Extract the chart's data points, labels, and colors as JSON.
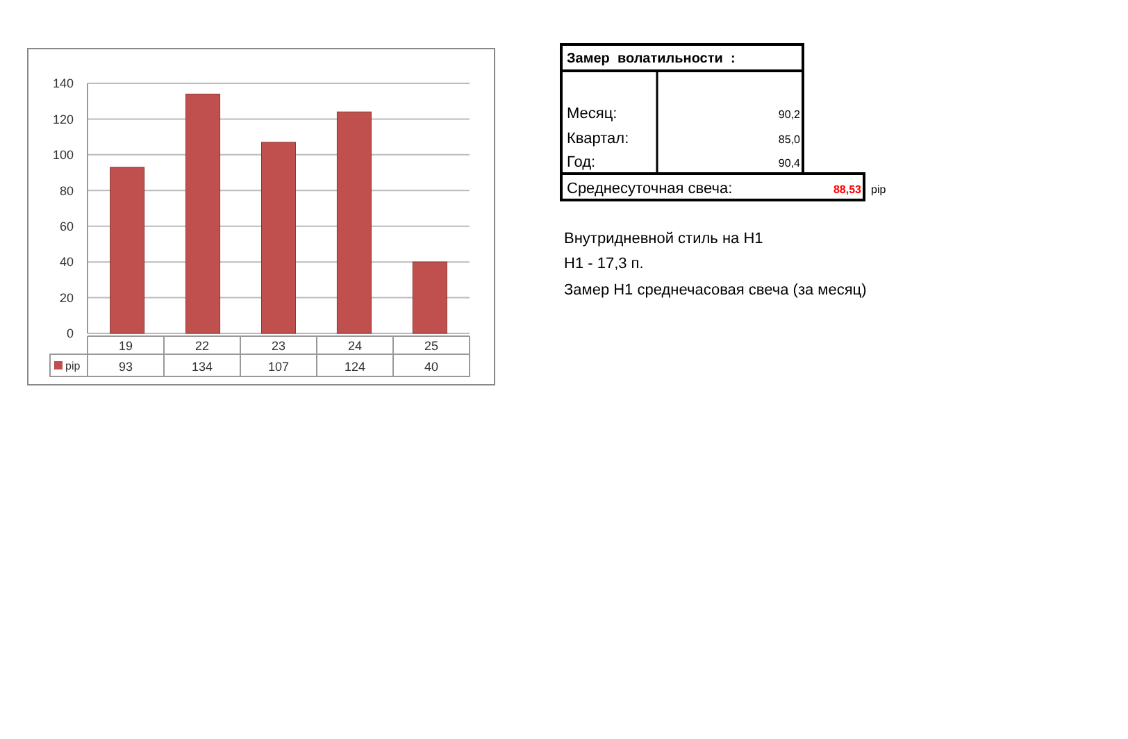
{
  "chart_data": [
    {
      "type": "bar",
      "categories": [
        "19",
        "22",
        "23",
        "24",
        "25"
      ],
      "series": [
        {
          "name": "pip",
          "color": "#c0504d",
          "values": [
            93,
            134,
            107,
            124,
            40
          ]
        }
      ],
      "ylim": [
        0,
        140
      ],
      "yticks": [
        0,
        20,
        40,
        60,
        80,
        100,
        120,
        140
      ],
      "grid": "y",
      "data_labels": true,
      "legend": "bottom left"
    },
    {
      "type": "other",
      "title": "Замер  волатильности  :",
      "annotations": [
        "Месяц:",
        "90,2",
        "Квартал:",
        "85,0",
        "Год:",
        "90,4",
        "Среднесуточная свеча:",
        "88,53",
        "pip",
        "Внутридневной стиль на H1",
        "H1 - 17,3 п.",
        "Замер H1 среднечасовая свеча (за месяц)"
      ]
    }
  ]
}
